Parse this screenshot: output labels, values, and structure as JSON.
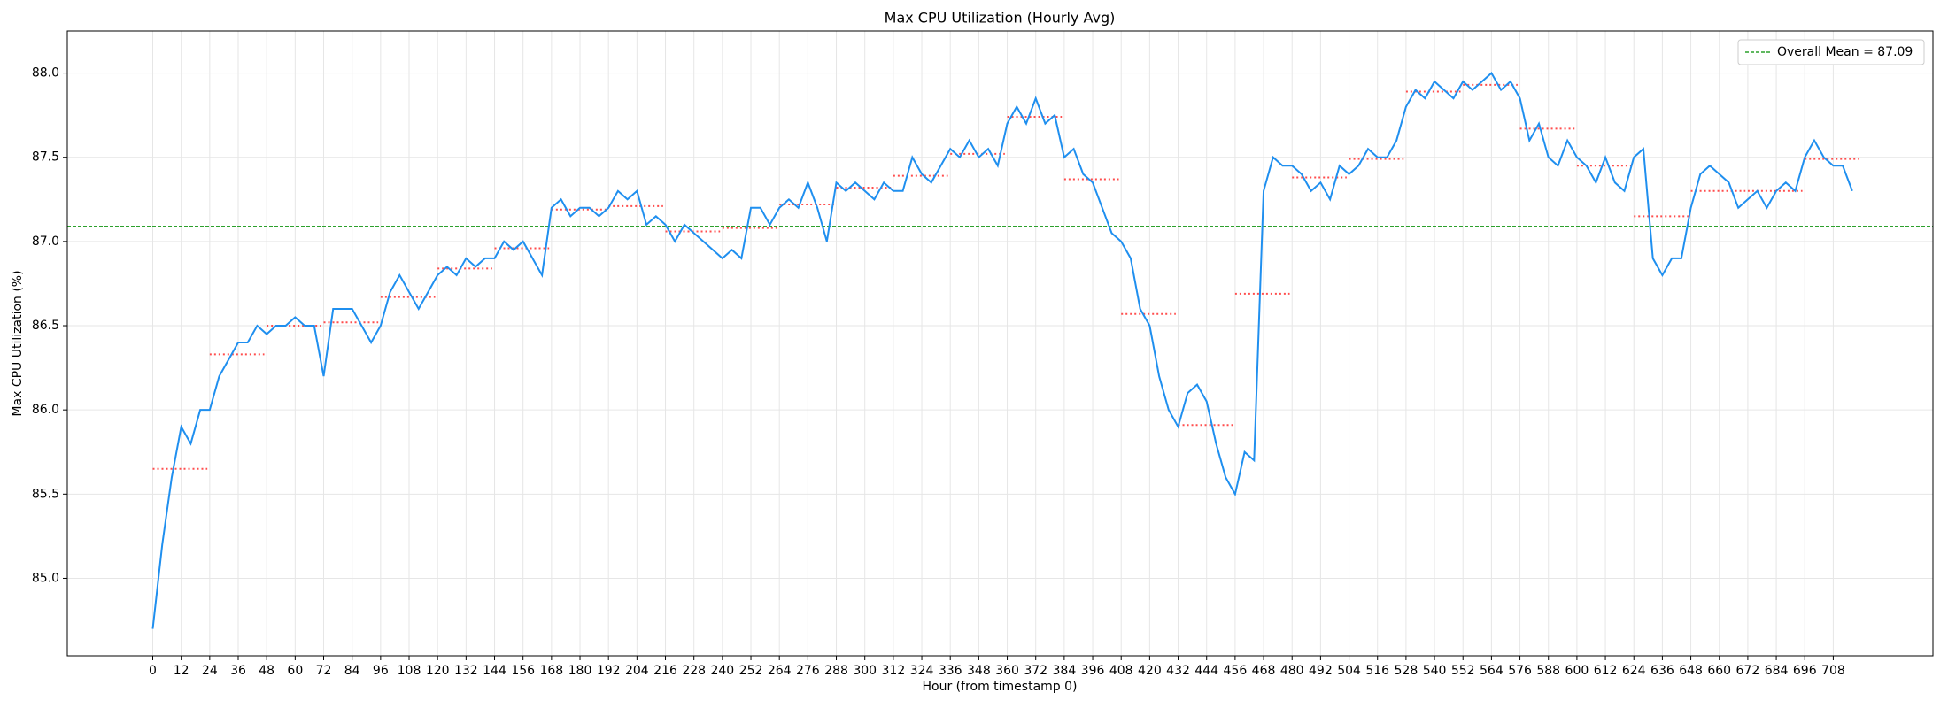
{
  "chart_data": {
    "type": "line",
    "title": "Max CPU Utilization (Hourly Avg)",
    "x_label": "Hour (from timestamp 0)",
    "y_label": "Max CPU Utilization (%)",
    "x": [
      0,
      4,
      8,
      12,
      16,
      20,
      24,
      28,
      32,
      36,
      40,
      44,
      48,
      52,
      56,
      60,
      64,
      68,
      72,
      76,
      80,
      84,
      88,
      92,
      96,
      100,
      104,
      108,
      112,
      116,
      120,
      124,
      128,
      132,
      136,
      140,
      144,
      148,
      152,
      156,
      160,
      164,
      168,
      172,
      176,
      180,
      184,
      188,
      192,
      196,
      200,
      204,
      208,
      212,
      216,
      220,
      224,
      228,
      232,
      236,
      240,
      244,
      248,
      252,
      256,
      260,
      264,
      268,
      272,
      276,
      280,
      284,
      288,
      292,
      296,
      300,
      304,
      308,
      312,
      316,
      320,
      324,
      328,
      332,
      336,
      340,
      344,
      348,
      352,
      356,
      360,
      364,
      368,
      372,
      376,
      380,
      384,
      388,
      392,
      396,
      400,
      404,
      408,
      412,
      416,
      420,
      424,
      428,
      432,
      436,
      440,
      444,
      448,
      452,
      456,
      460,
      464,
      468,
      472,
      476,
      480,
      484,
      488,
      492,
      496,
      500,
      504,
      508,
      512,
      516,
      520,
      524,
      528,
      532,
      536,
      540,
      544,
      548,
      552,
      556,
      560,
      564,
      568,
      572,
      576,
      580,
      584,
      588,
      592,
      596,
      600,
      604,
      608,
      612,
      616,
      620,
      624,
      628,
      632,
      636,
      640,
      644,
      648,
      652,
      656,
      660,
      664,
      668,
      672,
      676,
      680,
      684,
      688,
      692,
      696,
      700,
      704,
      708,
      712,
      716
    ],
    "series": [
      {
        "color": "#1f8fef",
        "values": [
          84.7,
          85.2,
          85.6,
          85.9,
          85.8,
          86.0,
          86.0,
          86.2,
          86.3,
          86.4,
          86.4,
          86.5,
          86.45,
          86.5,
          86.5,
          86.55,
          86.5,
          86.5,
          86.2,
          86.6,
          86.6,
          86.6,
          86.5,
          86.4,
          86.5,
          86.7,
          86.8,
          86.7,
          86.6,
          86.7,
          86.8,
          86.85,
          86.8,
          86.9,
          86.85,
          86.9,
          86.9,
          87.0,
          86.95,
          87.0,
          86.9,
          86.8,
          87.2,
          87.25,
          87.15,
          87.2,
          87.2,
          87.15,
          87.2,
          87.3,
          87.25,
          87.3,
          87.1,
          87.15,
          87.1,
          87.0,
          87.1,
          87.05,
          87.0,
          86.95,
          86.9,
          86.95,
          86.9,
          87.2,
          87.2,
          87.1,
          87.2,
          87.25,
          87.2,
          87.35,
          87.2,
          87.0,
          87.35,
          87.3,
          87.35,
          87.3,
          87.25,
          87.35,
          87.3,
          87.3,
          87.5,
          87.4,
          87.35,
          87.45,
          87.55,
          87.5,
          87.6,
          87.5,
          87.55,
          87.45,
          87.7,
          87.8,
          87.7,
          87.85,
          87.7,
          87.75,
          87.5,
          87.55,
          87.4,
          87.35,
          87.2,
          87.05,
          87.0,
          86.9,
          86.6,
          86.5,
          86.2,
          86.0,
          85.9,
          86.1,
          86.15,
          86.05,
          85.8,
          85.6,
          85.5,
          85.75,
          85.7,
          87.3,
          87.5,
          87.45,
          87.45,
          87.4,
          87.3,
          87.35,
          87.25,
          87.45,
          87.4,
          87.45,
          87.55,
          87.5,
          87.5,
          87.6,
          87.8,
          87.9,
          87.85,
          87.95,
          87.9,
          87.85,
          87.95,
          87.9,
          87.95,
          88.0,
          87.9,
          87.95,
          87.85,
          87.6,
          87.7,
          87.5,
          87.45,
          87.6,
          87.5,
          87.45,
          87.35,
          87.5,
          87.35,
          87.3,
          87.5,
          87.55,
          86.9,
          86.8,
          86.9,
          86.9,
          87.2,
          87.4,
          87.45,
          87.4,
          87.35,
          87.2,
          87.25,
          87.3,
          87.2,
          87.3,
          87.35,
          87.3,
          87.5,
          87.6,
          87.5,
          87.45,
          87.45,
          87.3
        ]
      }
    ],
    "daily_means": {
      "color": "#ff4d4d",
      "x_start": [
        0,
        24,
        48,
        72,
        96,
        120,
        144,
        168,
        192,
        216,
        240,
        264,
        288,
        312,
        336,
        360,
        384,
        408,
        432,
        456,
        480,
        504,
        528,
        552,
        576,
        600,
        624,
        648,
        672,
        696
      ],
      "x_end": [
        23,
        47,
        71,
        95,
        119,
        143,
        167,
        191,
        215,
        239,
        263,
        287,
        311,
        335,
        359,
        383,
        407,
        431,
        455,
        479,
        503,
        527,
        551,
        575,
        599,
        623,
        647,
        671,
        695,
        719
      ],
      "values": [
        85.65,
        86.33,
        86.5,
        86.52,
        86.67,
        86.84,
        86.96,
        87.19,
        87.21,
        87.06,
        87.08,
        87.22,
        87.32,
        87.39,
        87.52,
        87.74,
        87.37,
        86.57,
        85.91,
        86.69,
        87.38,
        87.49,
        87.89,
        87.93,
        87.67,
        87.45,
        87.15,
        87.3,
        87.3,
        87.49
      ]
    },
    "reference_line": {
      "value": 87.09,
      "label": "Overall Mean = 87.09",
      "color": "#2ca02c"
    },
    "xlim": [
      -36,
      750
    ],
    "ylim": [
      84.54,
      88.25
    ],
    "xticks": [
      0,
      12,
      24,
      36,
      48,
      60,
      72,
      84,
      96,
      108,
      120,
      132,
      144,
      156,
      168,
      180,
      192,
      204,
      216,
      228,
      240,
      252,
      264,
      276,
      288,
      300,
      312,
      324,
      336,
      348,
      360,
      372,
      384,
      396,
      408,
      420,
      432,
      444,
      456,
      468,
      480,
      492,
      504,
      516,
      528,
      540,
      552,
      564,
      576,
      588,
      600,
      612,
      624,
      636,
      648,
      660,
      672,
      684,
      696,
      708
    ],
    "yticks": [
      {
        "value": 85,
        "label": "85.0"
      },
      85.5,
      {
        "value": 86,
        "label": "86.0"
      },
      86.5,
      {
        "value": 87,
        "label": "87.0"
      },
      87.5,
      {
        "value": 88,
        "label": "88.0"
      }
    ],
    "grid": true,
    "legend": "upper right"
  }
}
